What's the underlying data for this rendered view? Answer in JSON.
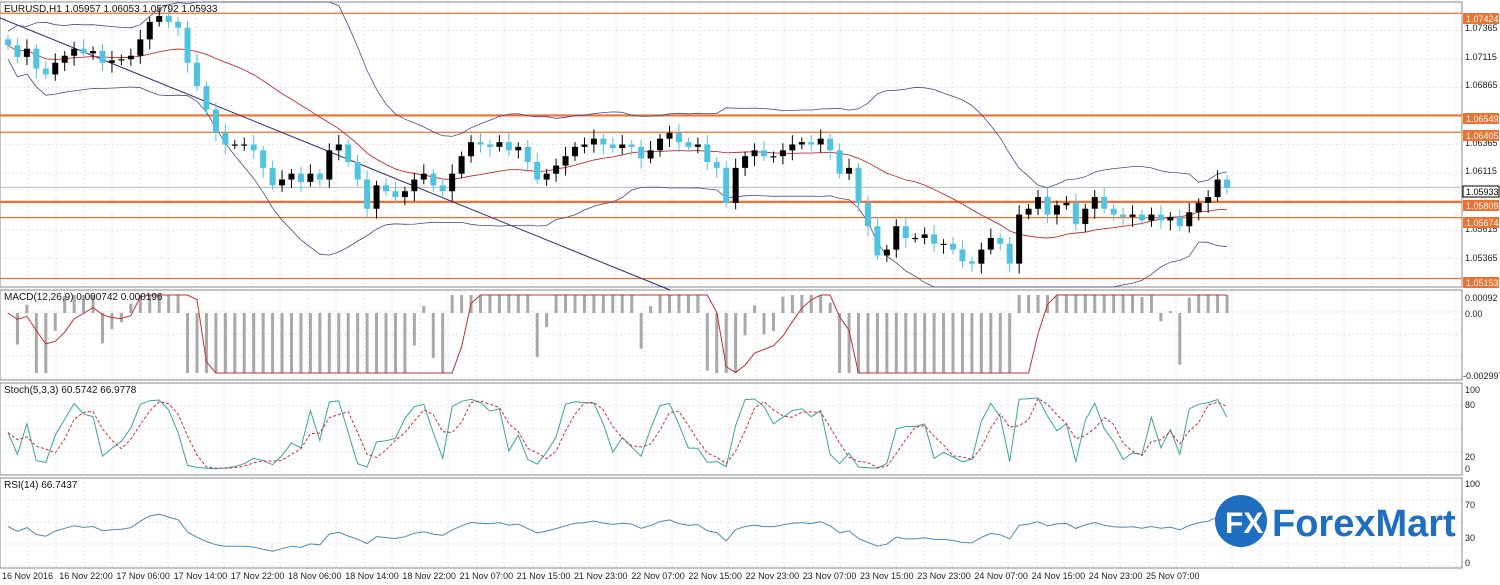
{
  "main_panel": {
    "title": "EURUSD,H1  1.05957 1.06053 1.05792 1.05933",
    "price_ticks": [
      "1.07365",
      "1.07115",
      "1.06865",
      "1.06365",
      "1.06115",
      "1.05615",
      "1.05365"
    ],
    "price_tags": [
      {
        "label": "1.07424",
        "color": "#f07030"
      },
      {
        "label": "1.06549",
        "color": "#f07030"
      },
      {
        "label": "1.06405",
        "color": "#f07030"
      },
      {
        "label": "1.05933",
        "color": "#ffffff",
        "text_color": "#000000"
      },
      {
        "label": "1.05809",
        "color": "#f07030"
      },
      {
        "label": "1.05674",
        "color": "#f07030"
      },
      {
        "label": "1.05153",
        "color": "#f07030"
      }
    ]
  },
  "macd_panel": {
    "title": "MACD(12,26,9) 0.000742 0.000196",
    "ticks": [
      "0.00092",
      "0.00",
      "-0.002997"
    ]
  },
  "stoch_panel": {
    "title": "Stoch(5,3,3) 60.5742 66.9778",
    "ticks": [
      "100",
      "80",
      "20",
      "0"
    ]
  },
  "rsi_panel": {
    "title": "RSI(14) 66.7437",
    "ticks": [
      "100",
      "70",
      "30",
      "0"
    ]
  },
  "time_axis": [
    "16 Nov 2016",
    "16 Nov 22:00",
    "17 Nov 06:00",
    "17 Nov 14:00",
    "17 Nov 22:00",
    "18 Nov 06:00",
    "18 Nov 14:00",
    "18 Nov 22:00",
    "21 Nov 07:00",
    "21 Nov 15:00",
    "21 Nov 23:00",
    "22 Nov 07:00",
    "22 Nov 15:00",
    "22 Nov 23:00",
    "23 Nov 07:00",
    "23 Nov 15:00",
    "23 Nov 23:00",
    "24 Nov 07:00",
    "24 Nov 15:00",
    "24 Nov 23:00",
    "25 Nov 07:00"
  ],
  "logo": {
    "badge": "FX",
    "text": "ForexMart"
  },
  "colors": {
    "bull": "#000000",
    "bear": "#4fc3e0",
    "level": "#f07030",
    "bands": "#4b4b8a",
    "ma": "#c03030",
    "trendline": "#2a2a7a",
    "macd_hist": "#a8a8a8",
    "signal": "#c03030",
    "stoch_main": "#3aa3a3",
    "stoch_signal": "#d03030",
    "rsi": "#4a8ab8",
    "logo_blue": "#1e6fc0"
  },
  "chart_data": {
    "type": "candlestick",
    "closes": [
      1.0715,
      1.0705,
      1.0712,
      1.0695,
      1.069,
      1.07,
      1.0706,
      1.0712,
      1.0708,
      1.071,
      1.07,
      1.0702,
      1.0703,
      1.0706,
      1.072,
      1.0735,
      1.074,
      1.0735,
      1.073,
      1.07,
      1.068,
      1.066,
      1.064,
      1.063,
      1.063,
      1.063,
      1.0625,
      1.061,
      1.0595,
      1.06,
      1.0605,
      1.0598,
      1.0605,
      1.06,
      1.0625,
      1.063,
      1.0615,
      1.06,
      1.0575,
      1.0595,
      1.059,
      1.0585,
      1.059,
      1.06,
      1.0605,
      1.0595,
      1.059,
      1.0605,
      1.062,
      1.0632,
      1.063,
      1.0628,
      1.0632,
      1.0625,
      1.0628,
      1.0615,
      1.06,
      1.0605,
      1.0612,
      1.062,
      1.0628,
      1.063,
      1.0635,
      1.063,
      1.0627,
      1.063,
      1.0628,
      1.0618,
      1.0625,
      1.0635,
      1.064,
      1.0632,
      1.0628,
      1.063,
      1.0615,
      1.061,
      1.058,
      1.061,
      1.062,
      1.0625,
      1.062,
      1.062,
      1.0625,
      1.063,
      1.0632,
      1.063,
      1.0635,
      1.0625,
      1.0605,
      1.061,
      1.058,
      1.056,
      1.0535,
      1.054,
      1.056,
      1.055,
      1.055,
      1.0553,
      1.0545,
      1.0545,
      1.054,
      1.053,
      1.0528,
      1.054,
      1.055,
      1.0545,
      1.0528,
      1.057,
      1.0575,
      1.0585,
      1.057,
      1.0578,
      1.058,
      1.0562,
      1.0575,
      1.0585,
      1.0575,
      1.057,
      1.0568,
      1.057,
      1.0565,
      1.057,
      1.0565,
      1.0568,
      1.056,
      1.0572,
      1.058,
      1.0585,
      1.06,
      1.0593
    ],
    "resistance_levels": [
      1.07424,
      1.06549,
      1.06405,
      1.05809,
      1.05674,
      1.05153
    ],
    "ylim": [
      1.0508,
      1.0752
    ],
    "indicators": [
      "Bollinger Bands",
      "Moving Average",
      "MACD(12,26,9)",
      "Stoch(5,3,3)",
      "RSI(14)"
    ]
  }
}
